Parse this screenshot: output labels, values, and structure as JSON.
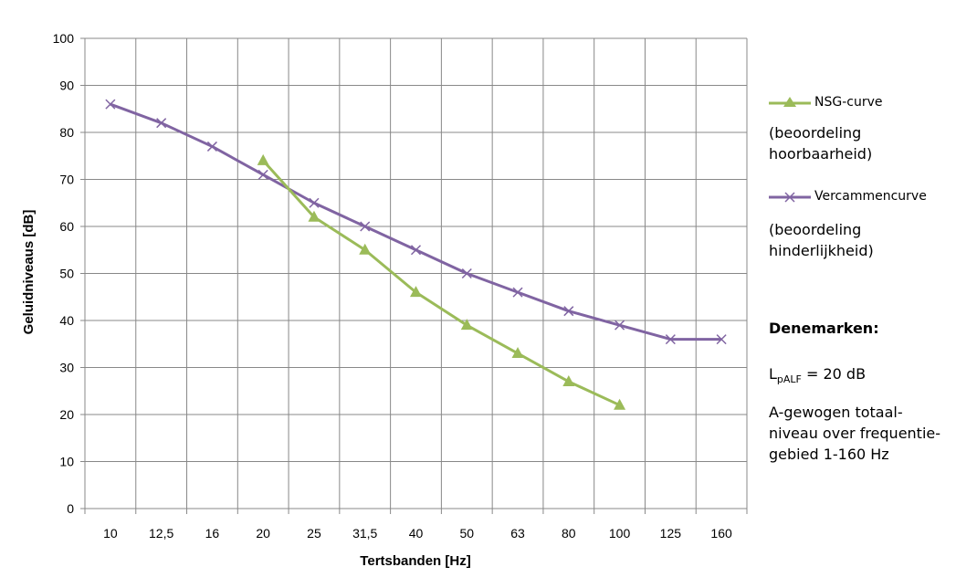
{
  "chart_data": {
    "type": "line",
    "xlabel": "Tertsbanden [Hz]",
    "ylabel": "Geluidniveaus [dB]",
    "ylim": [
      0,
      100
    ],
    "y_ticks": [
      "0",
      "10",
      "20",
      "30",
      "40",
      "50",
      "60",
      "70",
      "80",
      "90",
      "100"
    ],
    "categories": [
      "10",
      "12,5",
      "16",
      "20",
      "25",
      "31,5",
      "40",
      "50",
      "63",
      "80",
      "100",
      "125",
      "160"
    ],
    "grid": true,
    "legend_position": "right",
    "series": [
      {
        "name": "NSG-curve",
        "color": "#9BBB59",
        "marker": "triangle",
        "values": [
          null,
          null,
          null,
          74,
          62,
          55,
          46,
          39,
          33,
          27,
          22,
          null,
          null
        ]
      },
      {
        "name": "Vercammencurve",
        "color": "#8064A2",
        "marker": "x",
        "values": [
          86,
          82,
          77,
          71,
          65,
          60,
          55,
          50,
          46,
          42,
          39,
          36,
          36
        ]
      }
    ]
  },
  "legend": {
    "nsg_note": "(beoordeling hoorbaarheid)",
    "nsg_note_line1": "(beoordeling",
    "nsg_note_line2": "hoorbaarheid)",
    "vercammen_note_line1": "(beoordeling",
    "vercammen_note_line2": "hinderlijkheid)"
  },
  "annotation": {
    "heading": "Denemarken:",
    "level_L": "L",
    "level_sub": "pALF",
    "level_value": " = 20 dB",
    "desc_line1": "A-gewogen totaal-",
    "desc_line2": "niveau over frequentie-",
    "desc_line3": "gebied 1-160 Hz"
  }
}
